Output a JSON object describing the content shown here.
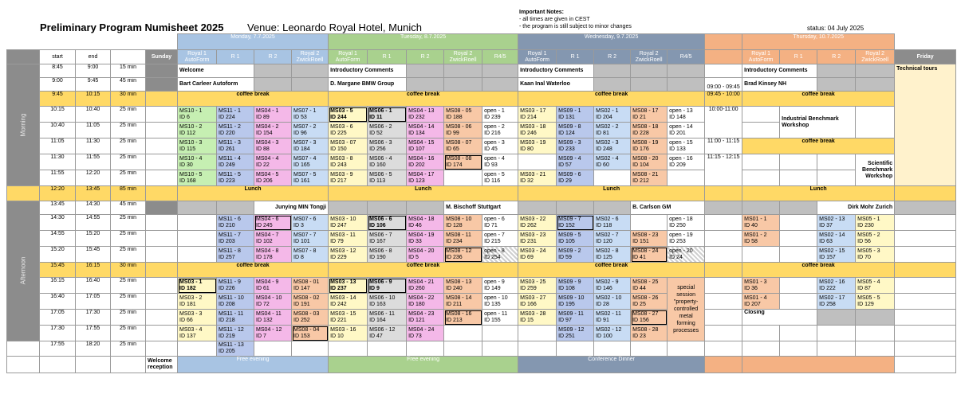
{
  "header": {
    "title": "Preliminary Program Numisheet 2025",
    "venue": "Venue: Leonardo Royal Hotel, Munich",
    "notes_title": "Important Notes:",
    "note1": "- all times are given in CEST",
    "note2": "- the program is still subject to minor changes",
    "status": "status: 04 July 2025"
  },
  "days": {
    "monday": "Monday, 7.7.2025",
    "tuesday": "Tuesday, 8.7.2025",
    "wednesday": "Wednesday, 9.7.2025",
    "thursday": "Thursday, 10.7.2025"
  },
  "rooms": {
    "royal1": "Royal 1 AutoForm",
    "r1": "R 1",
    "r2": "R 2",
    "royal2": "Royal 2 ZwickRoell",
    "r45": "R4/5"
  },
  "cols": {
    "start": "start",
    "end": "end",
    "sunday": "Sunday",
    "friday": "Friday"
  },
  "side": {
    "morning": "Morning",
    "afternoon": "Afternoon"
  },
  "rows": {
    "r0845": {
      "s": "8:45",
      "e": "9:00",
      "d": "15 min"
    },
    "r0900": {
      "s": "9:00",
      "e": "9:45",
      "d": "45 min"
    },
    "r0945": {
      "s": "9:45",
      "e": "10:15",
      "d": "30 min"
    },
    "r1015": {
      "s": "10:15",
      "e": "10:40",
      "d": "25 min"
    },
    "r1040": {
      "s": "10:40",
      "e": "11:05",
      "d": "25 min"
    },
    "r1105": {
      "s": "11:05",
      "e": "11:30",
      "d": "25 min"
    },
    "r1130": {
      "s": "11:30",
      "e": "11:55",
      "d": "25 min"
    },
    "r1155": {
      "s": "11:55",
      "e": "12:20",
      "d": "25 min"
    },
    "r1220": {
      "s": "12:20",
      "e": "13:45",
      "d": "85 min"
    },
    "r1345": {
      "s": "13:45",
      "e": "14:30",
      "d": "45 min"
    },
    "r1430": {
      "s": "14:30",
      "e": "14:55",
      "d": "25 min"
    },
    "r1455": {
      "s": "14:55",
      "e": "15:20",
      "d": "25 min"
    },
    "r1520": {
      "s": "15:20",
      "e": "15:45",
      "d": "25 min"
    },
    "r1545": {
      "s": "15:45",
      "e": "16:15",
      "d": "30 min"
    },
    "r1615": {
      "s": "16:15",
      "e": "16:40",
      "d": "25 min"
    },
    "r1640": {
      "s": "16:40",
      "e": "17:05",
      "d": "25 min"
    },
    "r1705": {
      "s": "17:05",
      "e": "17:30",
      "d": "25 min"
    },
    "r1730": {
      "s": "17:30",
      "e": "17:55",
      "d": "25 min"
    },
    "r1755": {
      "s": "17:55",
      "e": "18:20",
      "d": "25 min"
    }
  },
  "labels": {
    "welcome": "Welcome",
    "intro": "Introductory Comments",
    "carleer": "Bart Carleer Autoform",
    "margane": "D. Margane BMW Group",
    "inal": "Kaan Inal Waterloo",
    "kinsey": "Brad Kinsey NH",
    "coffee": "coffee break",
    "lunch": "Lunch",
    "tech_tours": "Technical tours",
    "junying": "Junying MIN Tongji",
    "bischoff": "M. Bischoff Stuttgart",
    "carlson": "B. Carlson GM",
    "mohr": "Dirk Mohr Zurich",
    "special": "special session \"property-controlled metal forming processes",
    "closing": "Closing",
    "welcome_reception": "Welcome reception",
    "free_evening": "Free evening",
    "dinner": "Conference Dinner",
    "th_0900": "09:00 - 09:45",
    "th_0945": "09:45 - 10:00",
    "th_1000": "10:00-11:00",
    "th_1100": "11:00 - 11:15",
    "th_1115": "11:15 - 12:15",
    "industrial": "Industrial Benchmark Workshop",
    "scientific": "Scientific Benchmark Workshop"
  },
  "s": {
    "mo1015": [
      "MS10 - 1 ID 6",
      "MS11 - 1 ID 224",
      "MS04 - 1 ID 89",
      "MS07 - 1 ID 53"
    ],
    "mo1040": [
      "MS10 - 2 ID 112",
      "MS11 - 2 ID 220",
      "MS04 - 2 ID 154",
      "MS07 - 2 ID 96"
    ],
    "mo1105": [
      "MS10 - 3 ID 115",
      "MS11 - 3 ID 261",
      "MS04 - 3 ID 88",
      "MS07 - 3 ID 184"
    ],
    "mo1130": [
      "MS10 - 4 ID 30",
      "MS11 - 4 ID 249",
      "MS04 - 4 ID 22",
      "MS07 - 4 ID 165"
    ],
    "mo1155": [
      "MS10 - 5 ID 168",
      "MS11 - 5 ID 223",
      "MS04 - 5 ID 206",
      "MS07 - 5 ID 161"
    ],
    "tu1015": [
      "MS03 - 5 ID 244",
      "MS06 - 1 ID 11",
      "MS04 - 13 ID 232",
      "MS08 - 05 ID 188",
      "open - 1 ID 239"
    ],
    "tu1040": [
      "MS03 - 6 ID 225",
      "MS06 - 2 ID 52",
      "MS04 - 14 ID 134",
      "MS08 - 06 ID 99",
      "open - 2 ID 216"
    ],
    "tu1105": [
      "MS03 - 07 ID 150",
      "MS06 - 3 ID 256",
      "MS04 - 15 ID 107",
      "MS08 - 07 ID 65",
      "open - 3 ID 45"
    ],
    "tu1130": [
      "MS03 - 8 ID 243",
      "MS06 - 4 ID 160",
      "MS04 - 16 ID 202",
      "MS08 - 08 ID 174",
      "open - 4 ID 93"
    ],
    "tu1155": [
      "MS03 - 9 ID 217",
      "MS06 - 5 ID 113",
      "MS04 - 17 ID 123",
      "",
      "open - 5 ID 116"
    ],
    "we1015": [
      "MS03 - 17 ID 214",
      "MS09 - 1 ID 131",
      "MS02 - 1 ID 204",
      "MS08 - 17 ID 21",
      "open - 13 ID 148"
    ],
    "we1040": [
      "MS03 - 18 ID 246",
      "MS09 - 8 ID 124",
      "MS02 - 2 ID 81",
      "MS08 - 18 ID 228",
      "open - 14 ID 201"
    ],
    "we1105": [
      "MS03 - 19 ID 80",
      "MS09 - 3 ID 233",
      "MS02 - 3 ID 248",
      "MS08 - 19 ID 176",
      "open - 15 ID 133"
    ],
    "we1130": [
      "",
      "MS09 - 4 ID 57",
      "MS02 - 4 ID 60",
      "MS08 - 20 ID 104",
      "open - 16 ID 209"
    ],
    "we1155": [
      "MS03 - 21 ID 32",
      "MS09 - 6 ID 29",
      "",
      "MS08 - 21 ID 212",
      ""
    ],
    "mo1430": [
      "MS11 - 6 ID 210",
      "MS04 - 6 ID 245",
      "MS07 - 6 ID 3"
    ],
    "mo1455": [
      "MS11 - 7 ID 203",
      "MS04 - 7 ID 102",
      "MS07 - 7 ID 101"
    ],
    "mo1520": [
      "MS11 - 8 ID 257",
      "MS04 - 8 ID 178",
      "MS07 - 8 ID 8"
    ],
    "tu1430": [
      "MS03 - 10 ID 247",
      "MS06 - 6 ID 106",
      "MS04 - 18 ID 46",
      "MS08 - 10 ID 128",
      "open - 6 ID 71"
    ],
    "tu1455": [
      "MS03 - 11 ID 79",
      "MS06 - 7 ID 167",
      "MS04 - 19 ID 33",
      "MS08 - 11 ID 234",
      "open - 7 ID 215"
    ],
    "tu1520": [
      "MS03 - 12 ID 229",
      "MS06 - 8 ID 190",
      "MS04 - 20 ID 5",
      "MS08 - 12 ID 236",
      "open - 8 ID 254"
    ],
    "we1430": [
      "MS03 - 22 ID 262",
      "MS09 - 7 ID 152",
      "MS02 - 6 ID 118",
      "",
      "open - 18 ID 250"
    ],
    "we1455": [
      "MS03 - 23 ID 231",
      "MS09 - 5 ID 105",
      "MS02 - 7 ID 120",
      "MS08 - 23 ID 151",
      "open - 19 ID 253"
    ],
    "we1520": [
      "MS03 - 24 ID 69",
      "MS09 - 2 ID 59",
      "MS02 - 8 ID 125",
      "MS08 - 24 ID 41",
      "open - 20 ID 24"
    ],
    "th1430": [
      "MS01 - 1 ID 40",
      "MS02 - 13 ID 37",
      "MS05 - 1 ID 230"
    ],
    "th1455": [
      "MS01 - 2 ID 58",
      "MS02 - 14 ID 63",
      "MS05 - 2 ID 56"
    ],
    "th1520": [
      "MS02 - 15 ID 157",
      "MS05 - 3 ID 70"
    ],
    "mo1615": [
      "MS03 - 1 ID 182",
      "MS11 - 9 ID 226",
      "MS04 - 9 ID 61",
      "MS08 - 01 ID 147"
    ],
    "mo1640": [
      "MS03 - 2 ID 181",
      "MS11 - 10 ID 208",
      "MS04 - 10 ID 72",
      "MS08 - 02 ID 191"
    ],
    "mo1705": [
      "MS03 - 3 ID 66",
      "MS11 - 11 ID 218",
      "MS04 - 11 ID 132",
      "MS08 - 03 ID 252"
    ],
    "mo1730": [
      "MS03 - 4 ID 137",
      "MS11 - 12 ID 219",
      "MS04 - 12 ID 7",
      "MS08 - 04 ID 153"
    ],
    "mo1755": [
      "MS11 - 13 ID 205"
    ],
    "tu1615": [
      "MS03 - 13 ID 237",
      "MS06 - 9 ID 9",
      "MS04 - 21 ID 260",
      "MS08 - 13 ID 240",
      "open - 9 ID 149"
    ],
    "tu1640": [
      "MS03 - 14 ID 242",
      "MS06 - 10 ID 163",
      "MS04 - 22 ID 180",
      "MS08 - 14 ID 211",
      "open - 10 ID 135"
    ],
    "tu1705": [
      "MS03 - 15 ID 221",
      "MS06 - 11 ID 164",
      "MS04 - 23 ID 121",
      "MS08 - 16 ID 213",
      "open - 11 ID 155"
    ],
    "tu1730": [
      "MS03 - 16 ID 10",
      "MS06 - 12 ID 47",
      "MS04 - 24 ID 73",
      "",
      ""
    ],
    "we1615": [
      "MS03 - 25 ID 259",
      "MS09 - 9 ID 108",
      "MS02 - 9 ID 146",
      "MS08 - 25 ID 44"
    ],
    "we1640": [
      "MS03 - 27 ID 166",
      "MS09 - 10 ID 195",
      "MS02 - 10 ID 28",
      "MS08 - 26 ID 25"
    ],
    "we1705": [
      "MS03 - 28 ID 15",
      "MS09 - 11 ID 97",
      "MS02 - 11 ID 91",
      "MS08 - 27 ID 156"
    ],
    "we1730": [
      "",
      "MS09 - 12 ID 251",
      "MS02 - 12 ID 100",
      "MS08 - 28 ID 23"
    ],
    "th1615": [
      "MS01 - 3 ID 36",
      "MS02 - 16 ID 222",
      "MS05 - 4 ID 87"
    ],
    "th1640": [
      "MS01 - 4 ID 207",
      "MS02 - 17 ID 258",
      "MS05 - 5 ID 129"
    ]
  }
}
